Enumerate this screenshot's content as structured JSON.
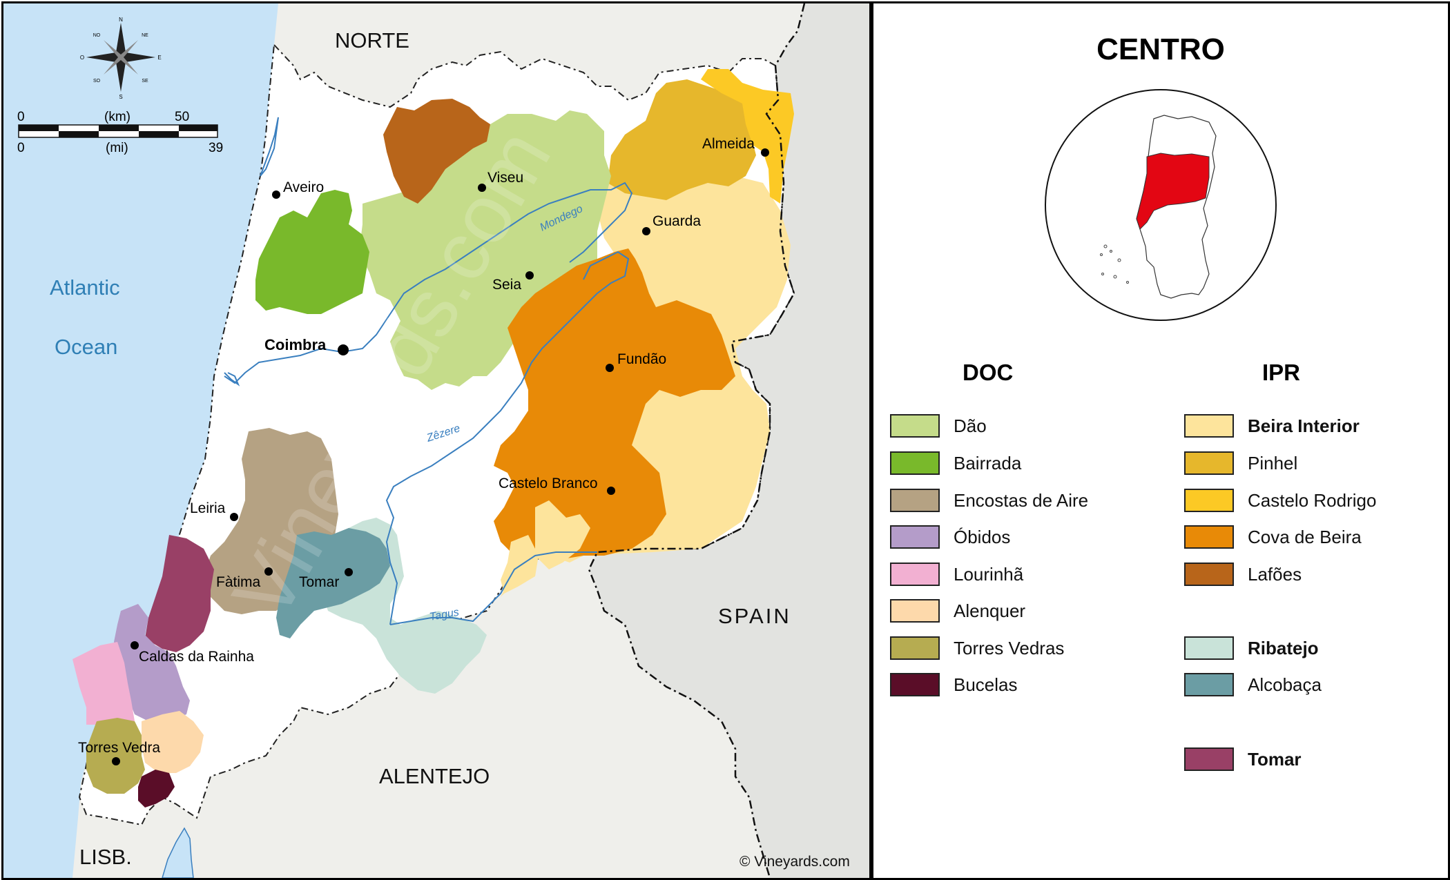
{
  "regions_text": {
    "norte": "NORTE",
    "spain": "SPAIN",
    "alentejo": "ALENTEJO",
    "lisb": "LISB.",
    "atlantic": "Atlantic",
    "ocean": "Ocean"
  },
  "scale": {
    "km_zero": "0",
    "km_unit": "(km)",
    "km_max": "50",
    "mi_zero": "0",
    "mi_unit": "(mi)",
    "mi_max": "39"
  },
  "compass": {
    "n": "N",
    "s": "S",
    "e": "E",
    "o": "O",
    "ne": "NE",
    "no": "NO",
    "se": "SE",
    "so": "SO"
  },
  "rivers": {
    "mondego": "Mondego",
    "zezere": "Zêzere",
    "tagus": "Tagus"
  },
  "cities": {
    "aveiro": "Aveiro",
    "viseu": "Viseu",
    "almeida": "Almeida",
    "guarda": "Guarda",
    "seia": "Seia",
    "coimbra": "Coimbra",
    "fundao": "Fundão",
    "castelo_branco": "Castelo Branco",
    "leiria": "Leiria",
    "fatima": "Fàtima",
    "tomar": "Tomar",
    "caldas": "Caldas da Rainha",
    "torres": "Torres Vedra"
  },
  "copyright": "© Vineyards.com",
  "legend": {
    "title": "CENTRO",
    "doc_title": "DOC",
    "ipr_title": "IPR",
    "doc_items": [
      {
        "label": "Dão",
        "color": "#c5dc8a"
      },
      {
        "label": "Bairrada",
        "color": "#79b92b"
      },
      {
        "label": "Encostas de Aire",
        "color": "#b5a283"
      },
      {
        "label": "Óbidos",
        "color": "#b49cc9"
      },
      {
        "label": "Lourinhã",
        "color": "#f2b0d2"
      },
      {
        "label": "Alenquer",
        "color": "#fdd9ab"
      },
      {
        "label": "Torres Vedras",
        "color": "#b6ac51"
      },
      {
        "label": "Bucelas",
        "color": "#5a0d28"
      }
    ],
    "ipr_items": [
      {
        "label": "Beira Interior",
        "color": "#fde49c",
        "bold": true
      },
      {
        "label": "Pinhel",
        "color": "#e6b72c"
      },
      {
        "label": "Castelo Rodrigo",
        "color": "#fcc925"
      },
      {
        "label": "Cova de Beira",
        "color": "#e88a07"
      },
      {
        "label": "Lafões",
        "color": "#b8651a"
      },
      {
        "label": "Ribatejo",
        "color": "#c9e3d9",
        "bold": true
      },
      {
        "label": "Alcobaça",
        "color": "#6b9da4"
      },
      {
        "label": "Tomar",
        "color": "#994066",
        "bold": true
      }
    ]
  },
  "colors": {
    "ocean": "#c7e3f7",
    "land_other": "#efefeb",
    "spain": "#e2e3e0",
    "centro_land": "#ffffff",
    "river": "#3a7fbf",
    "highlight": "#e30613"
  }
}
